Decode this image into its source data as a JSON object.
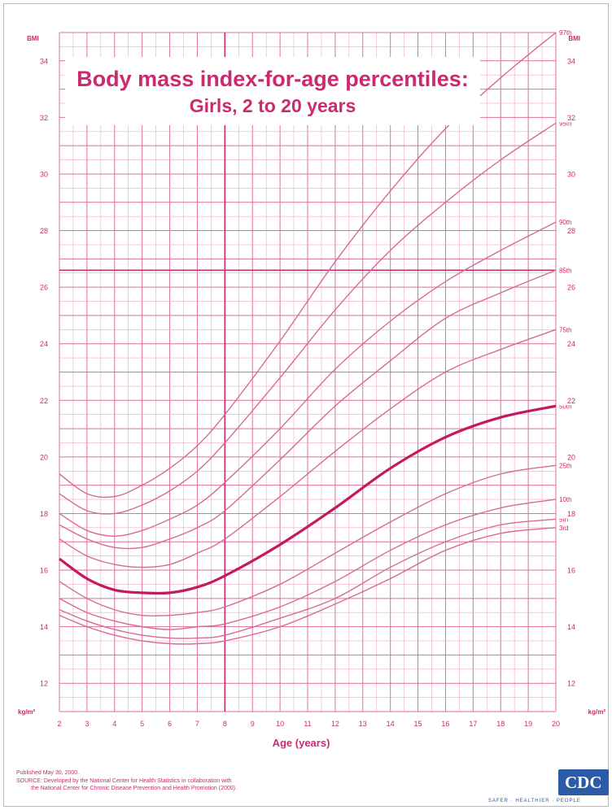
{
  "chart_data": {
    "type": "line",
    "title": "Body mass index-for-age percentiles:",
    "subtitle": "Girls, 2 to 20 years",
    "xlabel": "Age (years)",
    "ylabel": "BMI",
    "xlim": [
      2,
      20
    ],
    "ylim": [
      11,
      35
    ],
    "x_ticks": [
      2,
      3,
      4,
      5,
      6,
      7,
      8,
      9,
      10,
      11,
      12,
      13,
      14,
      15,
      16,
      17,
      18,
      19,
      20
    ],
    "x_tick_labels": [
      "2",
      "3",
      "4",
      "5",
      "6",
      "7",
      "8",
      "9",
      "10",
      "11",
      "12",
      "13",
      "14",
      "15",
      "16",
      "17",
      "18",
      "19",
      "20"
    ],
    "y_ticks": [
      12,
      14,
      16,
      18,
      20,
      22,
      24,
      26,
      28,
      30,
      32,
      34
    ],
    "y_tick_labels": [
      "12",
      "14",
      "16",
      "18",
      "20",
      "22",
      "24",
      "26",
      "28",
      "30",
      "32",
      "34"
    ],
    "y_unit_label": "kg/m²",
    "bmi_top_label": "BMI",
    "grid": true,
    "reference_lines": {
      "x": 8,
      "y": 26.6
    },
    "x": [
      2,
      3,
      4,
      5,
      6,
      7,
      8,
      10,
      12,
      14,
      16,
      18,
      20
    ],
    "series": [
      {
        "name": "97th",
        "emphasis": false,
        "values": [
          19.4,
          18.7,
          18.6,
          19.0,
          19.6,
          20.4,
          21.5,
          24.1,
          26.9,
          29.4,
          31.6,
          33.4,
          35.0
        ]
      },
      {
        "name": "95th",
        "emphasis": false,
        "values": [
          18.7,
          18.1,
          18.0,
          18.3,
          18.8,
          19.5,
          20.5,
          22.8,
          25.2,
          27.3,
          29.0,
          30.5,
          31.8
        ]
      },
      {
        "name": "90th",
        "emphasis": false,
        "values": [
          18.0,
          17.4,
          17.2,
          17.4,
          17.8,
          18.3,
          19.1,
          21.0,
          23.1,
          24.8,
          26.2,
          27.3,
          28.3
        ]
      },
      {
        "name": "85th",
        "emphasis": false,
        "values": [
          17.6,
          17.1,
          16.8,
          16.8,
          17.1,
          17.5,
          18.1,
          19.9,
          21.8,
          23.4,
          24.9,
          25.8,
          26.6
        ]
      },
      {
        "name": "75th",
        "emphasis": false,
        "values": [
          17.1,
          16.5,
          16.2,
          16.1,
          16.2,
          16.6,
          17.1,
          18.6,
          20.2,
          21.7,
          23.0,
          23.8,
          24.5
        ]
      },
      {
        "name": "50th",
        "emphasis": true,
        "values": [
          16.4,
          15.7,
          15.3,
          15.2,
          15.2,
          15.4,
          15.8,
          16.9,
          18.2,
          19.6,
          20.7,
          21.4,
          21.8
        ]
      },
      {
        "name": "25th",
        "emphasis": false,
        "values": [
          15.6,
          15.0,
          14.6,
          14.4,
          14.4,
          14.5,
          14.7,
          15.5,
          16.6,
          17.7,
          18.7,
          19.4,
          19.7
        ]
      },
      {
        "name": "10th",
        "emphasis": false,
        "values": [
          15.0,
          14.5,
          14.2,
          14.0,
          13.9,
          14.0,
          14.1,
          14.7,
          15.6,
          16.7,
          17.6,
          18.2,
          18.5
        ]
      },
      {
        "name": "5th",
        "emphasis": false,
        "values": [
          14.6,
          14.2,
          13.9,
          13.7,
          13.6,
          13.6,
          13.7,
          14.3,
          15.0,
          16.1,
          17.0,
          17.6,
          17.8
        ]
      },
      {
        "name": "3rd",
        "emphasis": false,
        "values": [
          14.4,
          14.0,
          13.7,
          13.5,
          13.4,
          13.4,
          13.5,
          14.0,
          14.8,
          15.7,
          16.7,
          17.3,
          17.5
        ]
      }
    ]
  },
  "footer": {
    "line1": "Published May 30, 2000.",
    "line2": "SOURCE: Developed by the National Center for Health Statistics in collaboration with",
    "line3": "the National Center for Chronic Disease Prevention and Health Promotion (2000).",
    "logo": "CDC",
    "tagline": "SAFER · HEALTHIER · PEOPLE"
  },
  "colors": {
    "accent": "#cc2a6e",
    "grid_minor": "#f0a7c3",
    "grid_major": "#df6f9c",
    "curve": "#d46b98",
    "curve_bold": "#c4195f",
    "logo": "#2b5aa8"
  }
}
